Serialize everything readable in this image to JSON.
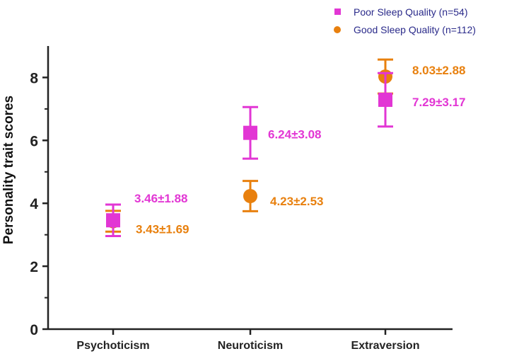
{
  "colors": {
    "poor": "#e236d4",
    "good": "#e8800e",
    "axis": "#222222"
  },
  "chart_data": {
    "type": "scatter",
    "title": "",
    "xlabel": "",
    "ylabel": "Personality trait scores",
    "categories": [
      "Psychoticism",
      "Neuroticism",
      "Extraversion"
    ],
    "ylim": [
      0,
      9
    ],
    "yticks": [
      0,
      2,
      4,
      6,
      8
    ],
    "legend_position": "top-right",
    "series": [
      {
        "name": "Poor  Sleep Quality (n=54)",
        "marker": "square",
        "values": [
          3.46,
          6.24,
          7.29
        ],
        "errors": [
          0.5,
          0.82,
          0.85
        ],
        "labels": [
          "3.46±1.88",
          "6.24±3.08",
          "7.29±3.17"
        ]
      },
      {
        "name": "Good  Sleep Quality (n=112)",
        "marker": "circle",
        "values": [
          3.43,
          4.23,
          8.03
        ],
        "errors": [
          0.33,
          0.48,
          0.54
        ],
        "labels": [
          "3.43±1.69",
          "4.23±2.53",
          "8.03±2.88"
        ]
      }
    ]
  }
}
